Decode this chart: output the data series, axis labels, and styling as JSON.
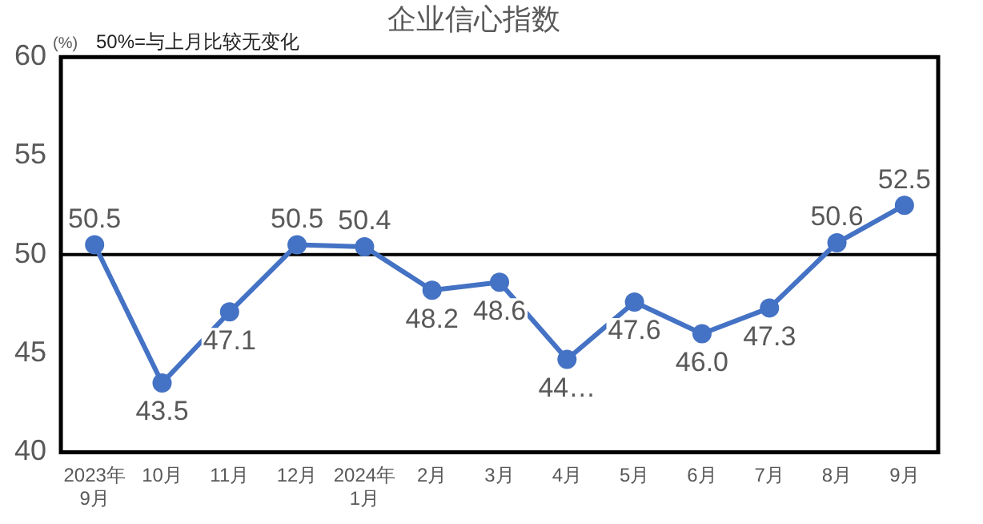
{
  "chart_data": {
    "type": "line",
    "title": "企业信心指数",
    "ylabel": "(%)",
    "annotations": [
      "50%=与上月比较无变化"
    ],
    "categories": [
      "2023年\n9月",
      "10月",
      "11月",
      "12月",
      "2024年\n1月",
      "2月",
      "3月",
      "4月",
      "5月",
      "6月",
      "7月",
      "8月",
      "9月"
    ],
    "series": [
      {
        "color": "#4472c4",
        "values": [
          50.5,
          43.5,
          47.1,
          50.5,
          50.4,
          48.2,
          48.6,
          44.7,
          47.6,
          46.0,
          47.3,
          50.6,
          52.5
        ],
        "value_labels": [
          "50.5",
          "43.5",
          "47.1",
          "50.5",
          "50.4",
          "48.2",
          "48.6",
          "44…",
          "47.6",
          "46.0",
          "47.3",
          "50.6",
          "52.5"
        ]
      }
    ],
    "ylim": [
      40,
      60
    ],
    "yticks": [
      40,
      45,
      50,
      55,
      60
    ],
    "ref_lines": [
      {
        "axis": "y",
        "value": 50,
        "color": "#000000"
      }
    ],
    "grid": false,
    "legend": false,
    "marker": "circle",
    "line_style": "solid"
  }
}
